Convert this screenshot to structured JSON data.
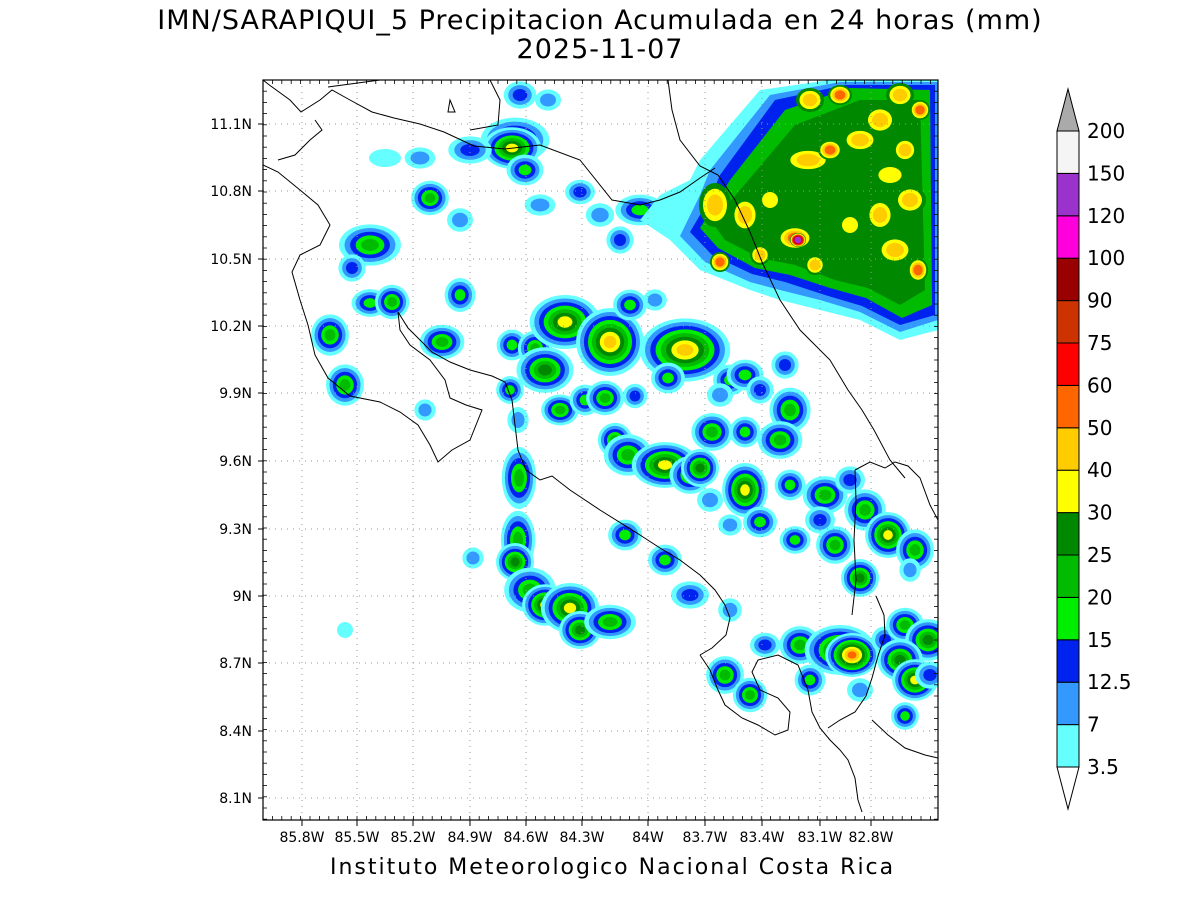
{
  "title": "IMN/SARAPIQUI_5 Precipitacion Acumulada en 24 horas (mm)",
  "date": "2025-11-07",
  "footer": "Instituto Meteorologico Nacional Costa Rica",
  "lat_ticks": [
    "11.1N",
    "10.8N",
    "10.5N",
    "10.2N",
    "9.9N",
    "9.6N",
    "9.3N",
    "9N",
    "8.7N",
    "8.4N",
    "8.1N"
  ],
  "lon_ticks": [
    "85.8W",
    "85.5W",
    "85.2W",
    "84.9W",
    "84.6W",
    "84.3W",
    "84W",
    "83.7W",
    "83.4W",
    "83.1W",
    "82.8W"
  ],
  "legend": {
    "levels": [
      "3.5",
      "7",
      "12.5",
      "15",
      "20",
      "25",
      "30",
      "40",
      "50",
      "60",
      "75",
      "90",
      "100",
      "120",
      "150",
      "200"
    ],
    "colors": [
      "#66ffff",
      "#3399ff",
      "#0022ee",
      "#00ee00",
      "#00bb00",
      "#008800",
      "#ffff00",
      "#ffcc00",
      "#ff6600",
      "#ff0000",
      "#cc3300",
      "#990000",
      "#ff00dd",
      "#9933cc",
      "#f5f5f5",
      "#aaaaaa"
    ]
  }
}
